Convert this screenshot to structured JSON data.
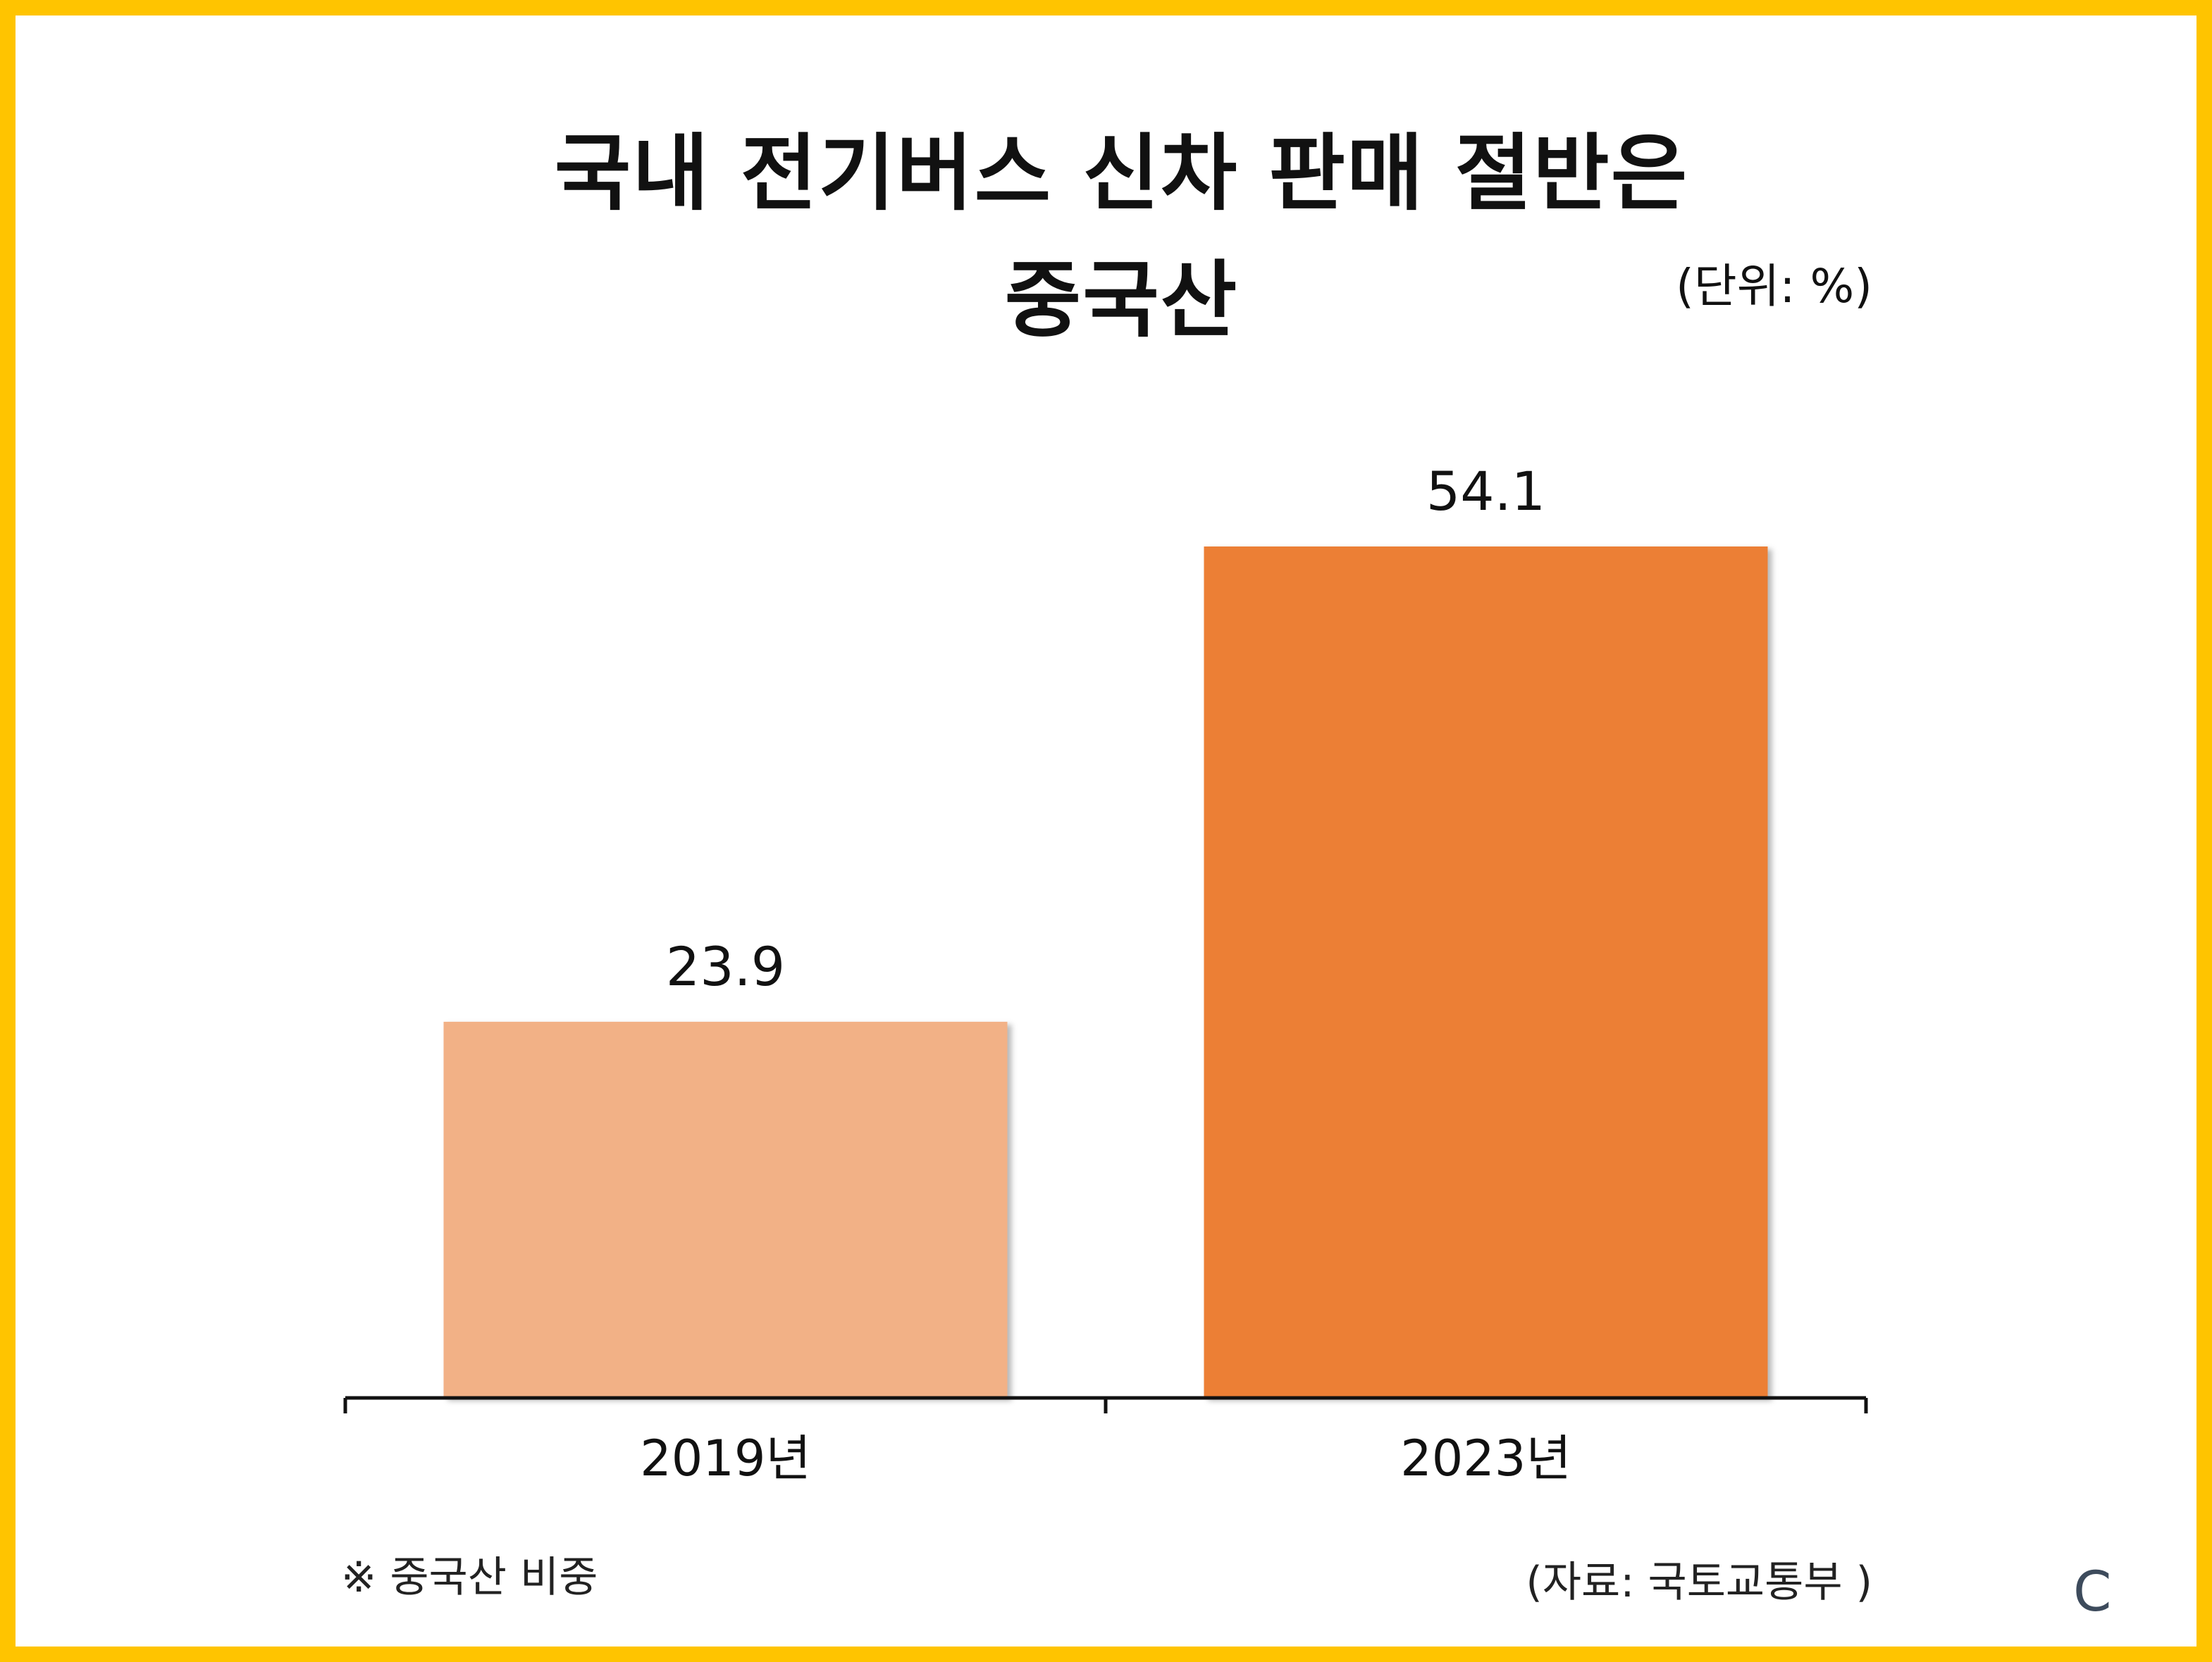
{
  "title_line1": "국내 전기버스 신차 판매 절반은",
  "title_line2": "중국산",
  "unit_label": "(단위: %)",
  "note": "※ 중국산 비중",
  "source": "(자료: 국토교통부 )",
  "logo_text": "C",
  "colors": {
    "border": "#FFC400",
    "bar_2019": "#F2B186",
    "bar_2023": "#EC7F35",
    "axis": "#111111"
  },
  "chart_data": {
    "type": "bar",
    "categories": [
      "2019년",
      "2023년"
    ],
    "values": [
      23.9,
      54.1
    ],
    "value_labels": [
      "23.9",
      "54.1"
    ],
    "title": "국내 전기버스 신차 판매 절반은 중국산",
    "unit": "%",
    "ylim": [
      0,
      60
    ],
    "grid": false,
    "legend": "none"
  }
}
